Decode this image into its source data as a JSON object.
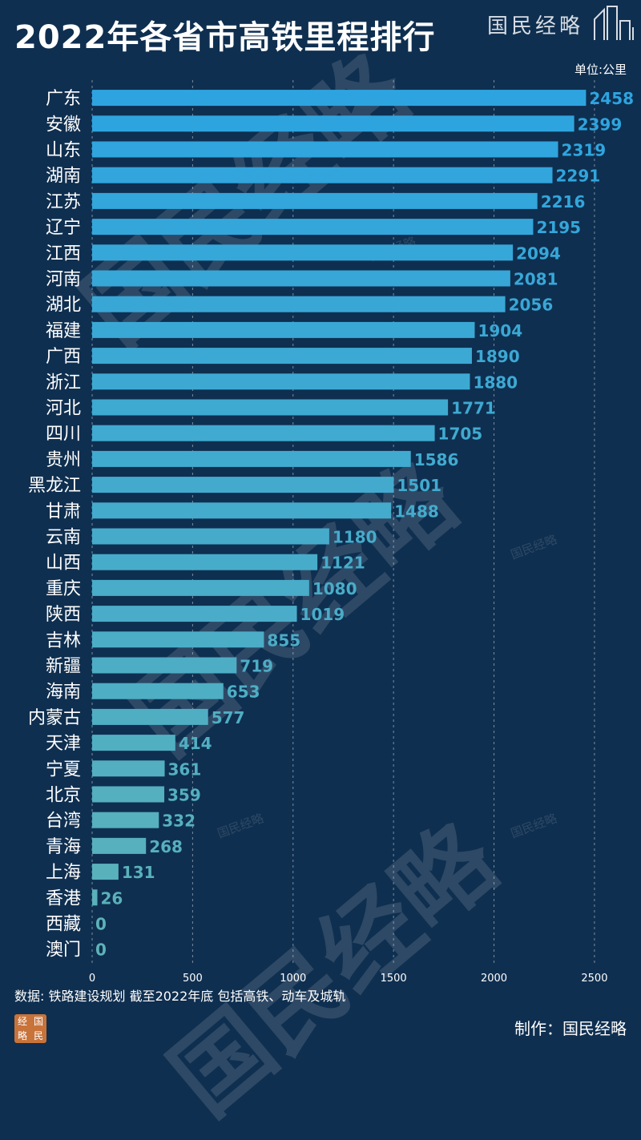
{
  "header": {
    "title": "2022年各省市高铁里程排行",
    "brand": "国民经略",
    "unit": "单位:公里"
  },
  "footer": {
    "source": "数据: 铁路建设规划 截至2022年底  包括高铁、动车及城轨",
    "credit": "制作：国民经略",
    "seal_chars": [
      "经",
      "国",
      "略",
      "民"
    ]
  },
  "watermark": {
    "text": "国民经略"
  },
  "colors": {
    "background": "#0f2f50",
    "bar_top": "#2da4e0",
    "bar_bottom": "#5db2b8",
    "gridline": "#ffffff",
    "label": "#ffffff"
  },
  "chart_data": {
    "type": "bar",
    "orientation": "horizontal",
    "title": "2022年各省市高铁里程排行",
    "unit": "单位:公里",
    "categories": [
      "广东",
      "安徽",
      "山东",
      "湖南",
      "江苏",
      "辽宁",
      "江西",
      "河南",
      "湖北",
      "福建",
      "广西",
      "浙江",
      "河北",
      "四川",
      "贵州",
      "黑龙江",
      "甘肃",
      "云南",
      "山西",
      "重庆",
      "陕西",
      "吉林",
      "新疆",
      "海南",
      "内蒙古",
      "天津",
      "宁夏",
      "北京",
      "台湾",
      "青海",
      "上海",
      "香港",
      "西藏",
      "澳门"
    ],
    "values": [
      2458,
      2399,
      2319,
      2291,
      2216,
      2195,
      2094,
      2081,
      2056,
      1904,
      1890,
      1880,
      1771,
      1705,
      1586,
      1501,
      1488,
      1180,
      1121,
      1080,
      1019,
      855,
      719,
      653,
      577,
      414,
      361,
      359,
      332,
      268,
      131,
      26,
      0,
      0
    ],
    "xlim": [
      0,
      2600
    ],
    "xticks": [
      0,
      500,
      1000,
      1500,
      2000,
      2500
    ],
    "grid": true,
    "legend": "none"
  }
}
